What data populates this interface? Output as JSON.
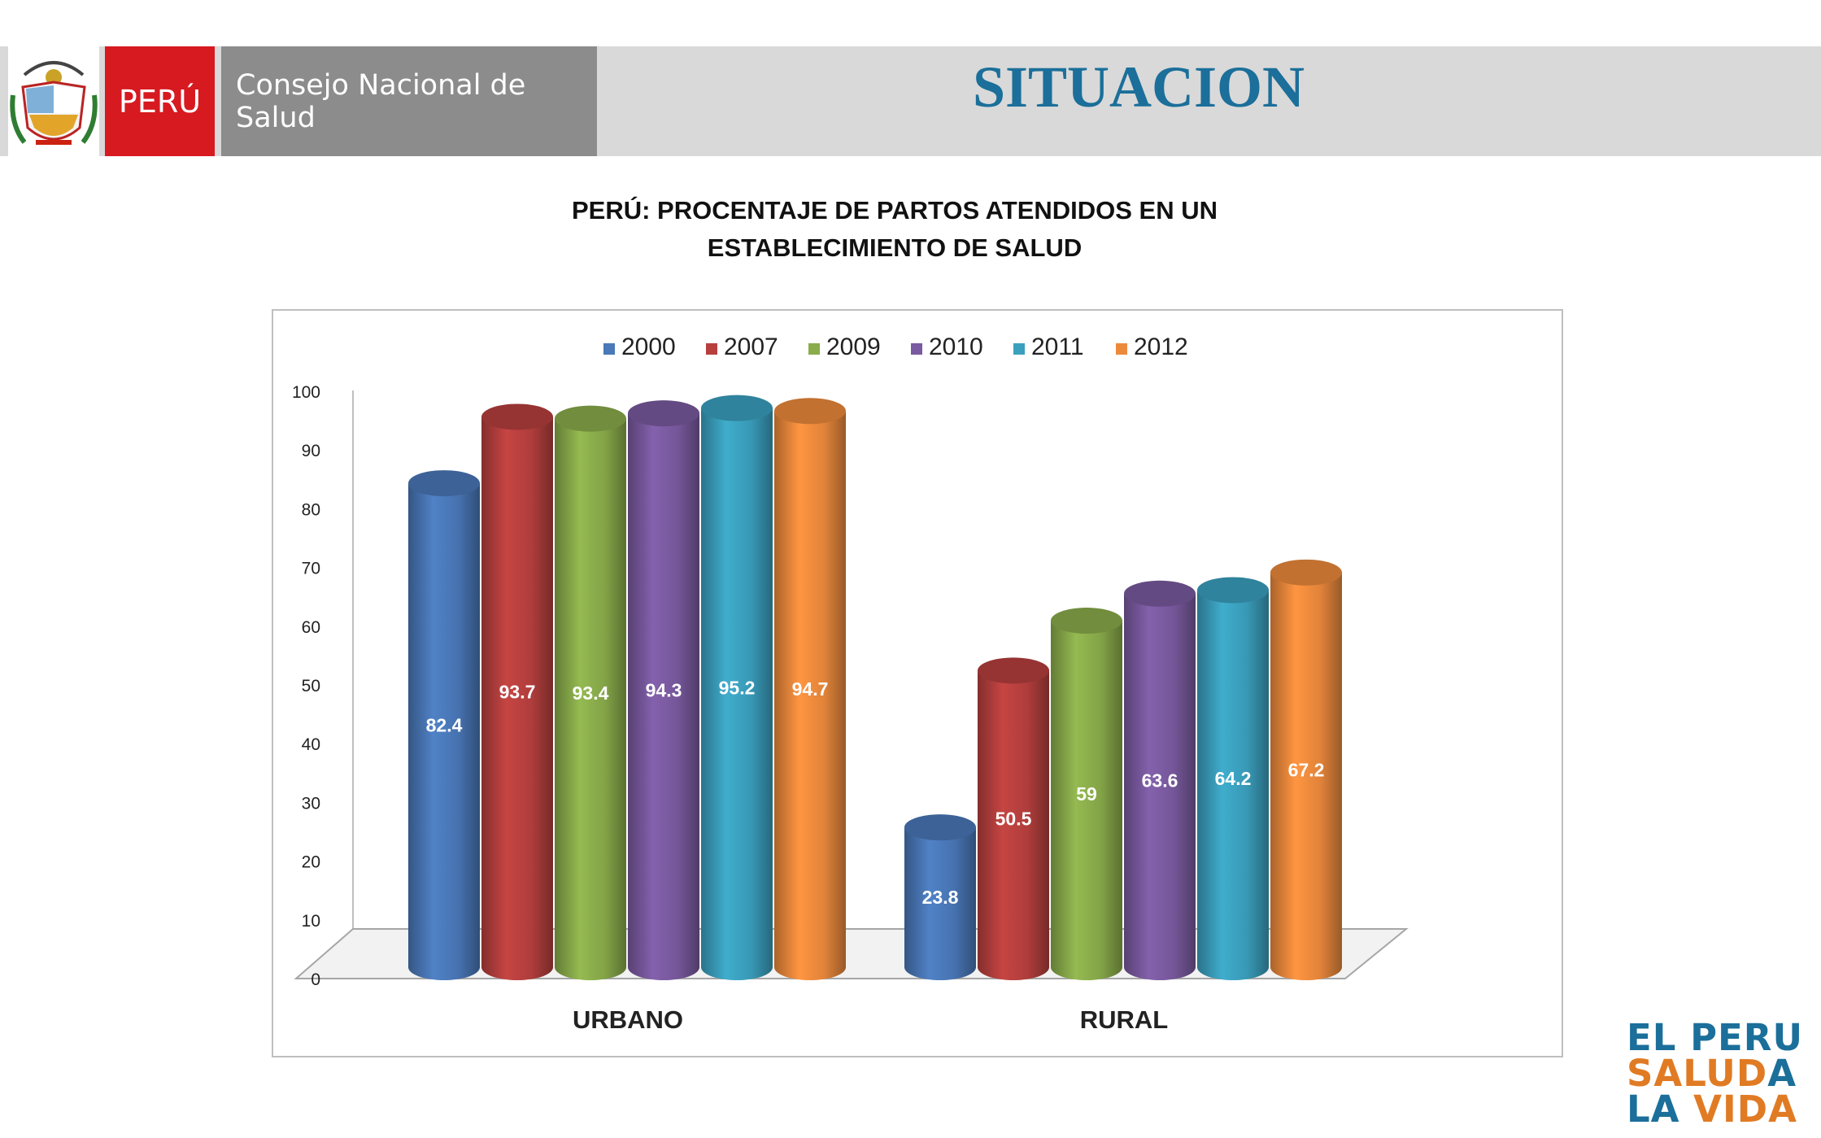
{
  "header": {
    "country_label": "PERÚ",
    "organization": "Consejo Nacional de Salud",
    "title": "SITUACION"
  },
  "chart_title_line1": "PERÚ: PROCENTAJE DE PARTOS ATENDIDOS EN UN",
  "chart_title_line2": "ESTABLECIMIENTO DE SALUD",
  "slogan": {
    "line1": "EL PERU",
    "line2_a": "SALUD",
    "line2_b": "A",
    "line3_a": "LA ",
    "line3_b": "VIDA"
  },
  "colors": {
    "accent_blue": "#1b6f9a",
    "accent_orange": "#e07b24",
    "peru_red": "#d71920"
  },
  "chart_data": {
    "type": "bar",
    "title": "PERÚ: PROCENTAJE DE PARTOS ATENDIDOS EN UN ESTABLECIMIENTO DE SALUD",
    "xlabel": "",
    "ylabel": "",
    "categories": [
      "URBANO",
      "RURAL"
    ],
    "ylim": [
      0,
      100
    ],
    "yticks": [
      0,
      10,
      20,
      30,
      40,
      50,
      60,
      70,
      80,
      90,
      100
    ],
    "legend_position": "top",
    "series": [
      {
        "name": "2000",
        "color": "#4a78b8",
        "values": [
          82.4,
          23.8
        ]
      },
      {
        "name": "2007",
        "color": "#b7403e",
        "values": [
          93.7,
          50.5
        ]
      },
      {
        "name": "2009",
        "color": "#8aac4b",
        "values": [
          93.4,
          59
        ]
      },
      {
        "name": "2010",
        "color": "#7a5aa0",
        "values": [
          94.3,
          63.6
        ]
      },
      {
        "name": "2011",
        "color": "#3ba0be",
        "values": [
          95.2,
          64.2
        ]
      },
      {
        "name": "2012",
        "color": "#ec8a3c",
        "values": [
          94.7,
          67.2
        ]
      }
    ],
    "value_labels": [
      [
        "82.4",
        "23.8"
      ],
      [
        "93.7",
        "50.5"
      ],
      [
        "93.4",
        "59"
      ],
      [
        "94.3",
        "63.6"
      ],
      [
        "95.2",
        "64.2"
      ],
      [
        "94.7",
        "67.2"
      ]
    ]
  }
}
